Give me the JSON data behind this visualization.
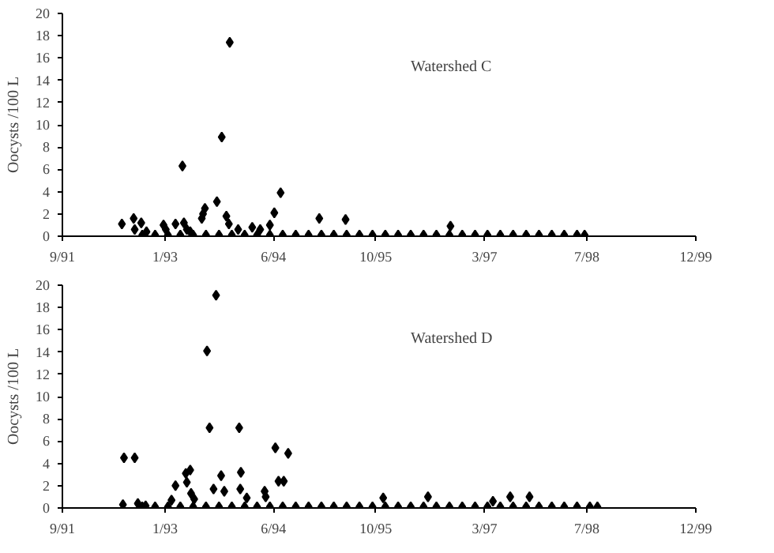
{
  "chart_data": [
    {
      "type": "scatter",
      "annotations": [
        "Watershed C"
      ],
      "ylabel": "Oocysts /100 L",
      "marker": "diamond",
      "grid": false,
      "xlim": [
        "1991-09-01",
        "1999-12-01"
      ],
      "ylim": [
        0,
        20
      ],
      "yticks": [
        0,
        2,
        4,
        6,
        8,
        10,
        12,
        14,
        16,
        18,
        20
      ],
      "xticks": [
        {
          "value": "1991-09-01",
          "label": "9/91"
        },
        {
          "value": "1993-01-01",
          "label": "1/93"
        },
        {
          "value": "1994-06-01",
          "label": "6/94"
        },
        {
          "value": "1995-10-01",
          "label": "10/95"
        },
        {
          "value": "1997-03-01",
          "label": "3/97"
        },
        {
          "value": "1998-07-01",
          "label": "7/98"
        },
        {
          "value": "1999-12-01",
          "label": "12/99"
        }
      ],
      "series": [
        {
          "color": "#000000",
          "x": [
            "1992-06-10",
            "1992-08-05",
            "1992-08-10",
            "1992-09-10",
            "1992-10-05",
            "1992-12-25",
            "1993-01-05",
            "1993-02-20",
            "1993-03-25",
            "1993-04-01",
            "1993-04-15",
            "1993-05-01",
            "1993-06-25",
            "1993-07-01",
            "1993-07-10",
            "1993-09-05",
            "1993-09-28",
            "1993-10-20",
            "1993-11-05",
            "1993-11-01",
            "1993-12-15",
            "1994-02-20",
            "1994-03-30",
            "1994-05-15",
            "1994-06-05",
            "1994-07-05",
            "1995-01-05",
            "1995-05-10",
            "1996-09-20",
            "1992-09-15",
            "1992-11-15",
            "1993-01-15",
            "1993-03-15",
            "1993-05-15",
            "1993-07-15",
            "1993-09-15",
            "1993-11-15",
            "1994-01-15",
            "1994-03-15",
            "1994-05-15",
            "1994-07-15",
            "1994-09-15",
            "1994-11-15",
            "1995-01-15",
            "1995-03-15",
            "1995-05-15",
            "1995-07-15",
            "1995-09-15",
            "1995-11-15",
            "1996-01-15",
            "1996-03-15",
            "1996-05-15",
            "1996-07-15",
            "1996-09-15",
            "1996-11-15",
            "1997-01-15",
            "1997-03-15",
            "1997-05-15",
            "1997-07-15",
            "1997-09-15",
            "1997-11-15",
            "1998-01-15",
            "1998-03-15",
            "1998-05-15",
            "1998-06-20"
          ],
          "values": [
            1.1,
            1.6,
            0.6,
            1.2,
            0.4,
            1.0,
            0.6,
            1.1,
            6.3,
            1.2,
            0.6,
            0.4,
            1.6,
            2.0,
            2.5,
            3.1,
            8.9,
            1.8,
            17.4,
            1.1,
            0.6,
            0.8,
            0.6,
            1.0,
            2.1,
            3.9,
            1.6,
            1.5,
            0.9,
            0.1,
            0.1,
            0.1,
            0.1,
            0.1,
            0.1,
            0.1,
            0.1,
            0.1,
            0.1,
            0.1,
            0.1,
            0.1,
            0.1,
            0.1,
            0.1,
            0.1,
            0.1,
            0.1,
            0.1,
            0.1,
            0.1,
            0.1,
            0.1,
            0.1,
            0.1,
            0.1,
            0.1,
            0.1,
            0.1,
            0.1,
            0.1,
            0.1,
            0.1,
            0.1,
            0.1
          ]
        }
      ]
    },
    {
      "type": "scatter",
      "annotations": [
        "Watershed D"
      ],
      "ylabel": "Oocysts /100 L",
      "marker": "diamond",
      "grid": false,
      "xlim": [
        "1991-09-01",
        "1999-12-01"
      ],
      "ylim": [
        0,
        20
      ],
      "yticks": [
        0,
        2,
        4,
        6,
        8,
        10,
        12,
        14,
        16,
        18,
        20
      ],
      "xticks": [
        {
          "value": "1991-09-01",
          "label": "9/91"
        },
        {
          "value": "1993-01-01",
          "label": "1/93"
        },
        {
          "value": "1994-06-01",
          "label": "6/94"
        },
        {
          "value": "1995-10-01",
          "label": "10/95"
        },
        {
          "value": "1997-03-01",
          "label": "3/97"
        },
        {
          "value": "1998-07-01",
          "label": "7/98"
        },
        {
          "value": "1999-12-01",
          "label": "12/99"
        }
      ],
      "series": [
        {
          "color": "#000000",
          "x": [
            "1992-06-15",
            "1992-06-20",
            "1992-08-10",
            "1992-08-25",
            "1992-10-01",
            "1993-02-01",
            "1993-02-20",
            "1993-04-15",
            "1993-04-10",
            "1993-05-01",
            "1993-05-05",
            "1993-05-20",
            "1993-07-20",
            "1993-08-01",
            "1993-09-01",
            "1993-08-20",
            "1993-09-25",
            "1993-10-10",
            "1993-12-20",
            "1993-12-28",
            "1993-12-25",
            "1994-01-25",
            "1994-04-20",
            "1994-04-25",
            "1994-06-10",
            "1994-06-25",
            "1994-07-20",
            "1994-08-10",
            "1995-11-05",
            "1996-06-05",
            "1997-04-10",
            "1997-07-01",
            "1997-10-01",
            "1992-09-15",
            "1992-11-15",
            "1993-01-15",
            "1993-03-15",
            "1993-05-15",
            "1993-07-15",
            "1993-09-15",
            "1993-11-15",
            "1994-01-15",
            "1994-03-15",
            "1994-05-15",
            "1994-07-15",
            "1994-09-15",
            "1994-11-15",
            "1995-01-15",
            "1995-03-15",
            "1995-05-15",
            "1995-07-15",
            "1995-09-15",
            "1995-11-15",
            "1996-01-15",
            "1996-03-15",
            "1996-05-15",
            "1996-07-15",
            "1996-09-15",
            "1996-11-15",
            "1997-01-15",
            "1997-03-15",
            "1997-05-15",
            "1997-07-15",
            "1997-09-15",
            "1997-11-15",
            "1998-01-15",
            "1998-03-15",
            "1998-05-15",
            "1998-07-15",
            "1998-08-20"
          ],
          "values": [
            0.3,
            4.5,
            4.5,
            0.4,
            0.2,
            0.7,
            2.0,
            2.3,
            3.1,
            3.4,
            1.3,
            0.8,
            14.1,
            7.2,
            19.1,
            1.7,
            2.9,
            1.5,
            7.2,
            3.2,
            1.7,
            0.9,
            1.5,
            1.0,
            5.4,
            2.4,
            2.4,
            4.9,
            0.9,
            1.0,
            0.6,
            1.0,
            1.0,
            0.1,
            0.1,
            0.1,
            0.1,
            0.1,
            0.1,
            0.1,
            0.1,
            0.1,
            0.1,
            0.1,
            0.1,
            0.1,
            0.1,
            0.1,
            0.1,
            0.1,
            0.1,
            0.1,
            0.1,
            0.1,
            0.1,
            0.1,
            0.1,
            0.1,
            0.1,
            0.1,
            0.1,
            0.1,
            0.1,
            0.1,
            0.1,
            0.1,
            0.1,
            0.1,
            0.1,
            0.1
          ]
        }
      ]
    }
  ]
}
